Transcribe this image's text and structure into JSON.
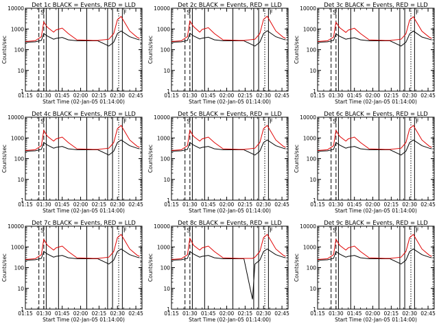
{
  "chart_data": [
    {
      "type": "line",
      "title": "Det 1c BLACK = Events, RED = LLD",
      "xlabel": "Start Time (02-Jan-05 01:14:00)",
      "ylabel": "Counts/sec",
      "yscale": "log",
      "ylim": [
        1,
        10000
      ],
      "xlim": [
        "01:15",
        "02:50"
      ],
      "x_ticks": [
        "01:15",
        "01:30",
        "01:45",
        "02:00",
        "02:15",
        "02:30",
        "02:45"
      ],
      "y_ticks": [
        "1",
        "10",
        "100",
        "1000",
        "10000"
      ],
      "x": [
        "01:15",
        "01:23",
        "01:28",
        "01:30",
        "01:33",
        "01:38",
        "01:40",
        "01:45",
        "01:50",
        "01:57",
        "02:10",
        "02:14",
        "02:23",
        "02:27",
        "02:30",
        "02:33",
        "02:40",
        "02:46",
        "02:48"
      ],
      "series": [
        {
          "name": "BLACK = Events",
          "color": "#000000",
          "values": [
            230,
            240,
            280,
            600,
            450,
            320,
            350,
            390,
            300,
            270,
            270,
            270,
            150,
            230,
            600,
            800,
            420,
            320,
            300
          ]
        },
        {
          "name": "RED = LLD",
          "color": "#e00000",
          "values": [
            250,
            270,
            420,
            2200,
            1200,
            700,
            900,
            1100,
            600,
            300,
            280,
            280,
            320,
            600,
            2800,
            4000,
            800,
            400,
            350
          ]
        }
      ],
      "markers": {
        "solid": [
          "01:32",
          "01:42",
          "02:05",
          "02:22",
          "02:26",
          "02:34"
        ],
        "dashed": [
          "01:26",
          "01:30"
        ],
        "dotted": [
          "02:31",
          "02:49"
        ]
      },
      "annotations": [
        "S",
        "F"
      ]
    },
    {
      "type": "line",
      "title": "Det 2c BLACK = Events, RED = LLD",
      "xlabel": "Start Time (02-Jan-05 01:14:00)",
      "ylabel": "Counts/sec",
      "yscale": "log",
      "ylim": [
        1,
        10000
      ],
      "xlim": [
        "01:15",
        "02:50"
      ],
      "x_ticks": [
        "01:15",
        "01:30",
        "01:45",
        "02:00",
        "02:15",
        "02:30",
        "02:45"
      ],
      "y_ticks": [
        "1",
        "10",
        "100",
        "1000",
        "10000"
      ],
      "x": [
        "01:15",
        "01:23",
        "01:28",
        "01:30",
        "01:33",
        "01:38",
        "01:40",
        "01:45",
        "01:50",
        "01:57",
        "02:10",
        "02:14",
        "02:23",
        "02:27",
        "02:30",
        "02:33",
        "02:40",
        "02:46",
        "02:48"
      ],
      "series": [
        {
          "name": "BLACK = Events",
          "color": "#000000",
          "values": [
            230,
            240,
            280,
            620,
            460,
            330,
            360,
            400,
            300,
            270,
            270,
            270,
            150,
            230,
            600,
            820,
            420,
            320,
            300
          ]
        },
        {
          "name": "RED = LLD",
          "color": "#e00000",
          "values": [
            250,
            270,
            430,
            2400,
            1300,
            700,
            950,
            1150,
            600,
            300,
            280,
            280,
            320,
            600,
            2900,
            4100,
            800,
            400,
            350
          ]
        }
      ],
      "markers": {
        "solid": [
          "01:32",
          "01:42",
          "02:05",
          "02:22",
          "02:26",
          "02:34"
        ],
        "dashed": [
          "01:26",
          "01:30"
        ],
        "dotted": [
          "02:31",
          "02:49"
        ]
      },
      "annotations": [
        "S",
        "F"
      ]
    },
    {
      "type": "line",
      "title": "Det 3c BLACK = Events, RED = LLD",
      "xlabel": "Start Time (02-Jan-05 01:14:00)",
      "ylabel": "Counts/sec",
      "yscale": "log",
      "ylim": [
        1,
        10000
      ],
      "xlim": [
        "01:15",
        "02:50"
      ],
      "x_ticks": [
        "01:15",
        "01:30",
        "01:45",
        "02:00",
        "02:15",
        "02:30",
        "02:45"
      ],
      "y_ticks": [
        "1",
        "10",
        "100",
        "1000",
        "10000"
      ],
      "x": [
        "01:15",
        "01:23",
        "01:28",
        "01:30",
        "01:33",
        "01:38",
        "01:40",
        "01:45",
        "01:50",
        "01:57",
        "02:10",
        "02:14",
        "02:23",
        "02:27",
        "02:30",
        "02:33",
        "02:40",
        "02:46",
        "02:48"
      ],
      "series": [
        {
          "name": "BLACK = Events",
          "color": "#000000",
          "values": [
            230,
            240,
            280,
            580,
            440,
            320,
            340,
            380,
            300,
            270,
            270,
            270,
            150,
            230,
            580,
            790,
            410,
            320,
            300
          ]
        },
        {
          "name": "RED = LLD",
          "color": "#e00000",
          "values": [
            250,
            270,
            410,
            2100,
            1150,
            680,
            880,
            1080,
            600,
            300,
            280,
            280,
            320,
            580,
            2700,
            3900,
            780,
            400,
            350
          ]
        }
      ],
      "markers": {
        "solid": [
          "01:32",
          "01:42",
          "02:05",
          "02:22",
          "02:26",
          "02:34"
        ],
        "dashed": [
          "01:26",
          "01:30"
        ],
        "dotted": [
          "02:31",
          "02:49"
        ]
      },
      "annotations": [
        "S",
        "F"
      ]
    },
    {
      "type": "line",
      "title": "Det 4c BLACK = Events, RED = LLD",
      "xlabel": "Start Time (02-Jan-05 01:14:00)",
      "ylabel": "Counts/sec",
      "yscale": "log",
      "ylim": [
        1,
        10000
      ],
      "xlim": [
        "01:15",
        "02:50"
      ],
      "x_ticks": [
        "01:15",
        "01:30",
        "01:45",
        "02:00",
        "02:15",
        "02:30",
        "02:45"
      ],
      "y_ticks": [
        "1",
        "10",
        "100",
        "1000",
        "10000"
      ],
      "x": [
        "01:15",
        "01:23",
        "01:28",
        "01:30",
        "01:33",
        "01:38",
        "01:40",
        "01:45",
        "01:50",
        "01:57",
        "02:10",
        "02:14",
        "02:23",
        "02:27",
        "02:30",
        "02:33",
        "02:40",
        "02:46",
        "02:48"
      ],
      "series": [
        {
          "name": "BLACK = Events",
          "color": "#000000",
          "values": [
            230,
            240,
            280,
            600,
            450,
            320,
            350,
            390,
            300,
            270,
            270,
            270,
            150,
            230,
            600,
            800,
            420,
            320,
            300
          ]
        },
        {
          "name": "RED = LLD",
          "color": "#e00000",
          "values": [
            250,
            270,
            420,
            2300,
            1200,
            700,
            900,
            1100,
            600,
            300,
            280,
            280,
            320,
            600,
            2800,
            4000,
            800,
            400,
            350
          ]
        }
      ],
      "markers": {
        "solid": [
          "01:32",
          "01:42",
          "02:05",
          "02:22",
          "02:26",
          "02:34"
        ],
        "dashed": [
          "01:26",
          "01:30"
        ],
        "dotted": [
          "02:31",
          "02:49"
        ]
      },
      "annotations": [
        "S",
        "F"
      ]
    },
    {
      "type": "line",
      "title": "Det 5c BLACK = Events, RED = LLD",
      "xlabel": "Start Time (02-Jan-05 01:14:00)",
      "ylabel": "Counts/sec",
      "yscale": "log",
      "ylim": [
        1,
        10000
      ],
      "xlim": [
        "01:15",
        "02:50"
      ],
      "x_ticks": [
        "01:15",
        "01:30",
        "01:45",
        "02:00",
        "02:15",
        "02:30",
        "02:45"
      ],
      "y_ticks": [
        "1",
        "10",
        "100",
        "1000",
        "10000"
      ],
      "x": [
        "01:15",
        "01:23",
        "01:28",
        "01:30",
        "01:33",
        "01:38",
        "01:40",
        "01:45",
        "01:50",
        "01:57",
        "02:10",
        "02:14",
        "02:23",
        "02:27",
        "02:30",
        "02:33",
        "02:40",
        "02:46",
        "02:48"
      ],
      "series": [
        {
          "name": "BLACK = Events",
          "color": "#000000",
          "values": [
            230,
            240,
            280,
            600,
            450,
            320,
            350,
            390,
            300,
            270,
            270,
            270,
            150,
            230,
            600,
            800,
            420,
            320,
            300
          ]
        },
        {
          "name": "RED = LLD",
          "color": "#e00000",
          "values": [
            250,
            270,
            420,
            2300,
            1200,
            700,
            900,
            1100,
            600,
            300,
            280,
            280,
            320,
            600,
            2800,
            4000,
            800,
            400,
            350
          ]
        }
      ],
      "markers": {
        "solid": [
          "01:32",
          "01:42",
          "02:05",
          "02:22",
          "02:26",
          "02:34"
        ],
        "dashed": [
          "01:26",
          "01:30"
        ],
        "dotted": [
          "02:31",
          "02:49"
        ]
      },
      "annotations": [
        "S",
        "F"
      ]
    },
    {
      "type": "line",
      "title": "Det 6c BLACK = Events, RED = LLD",
      "xlabel": "Start Time (02-Jan-05 01:14:00)",
      "ylabel": "Counts/sec",
      "yscale": "log",
      "ylim": [
        1,
        10000
      ],
      "xlim": [
        "01:15",
        "02:50"
      ],
      "x_ticks": [
        "01:15",
        "01:30",
        "01:45",
        "02:00",
        "02:15",
        "02:30",
        "02:45"
      ],
      "y_ticks": [
        "1",
        "10",
        "100",
        "1000",
        "10000"
      ],
      "x": [
        "01:15",
        "01:23",
        "01:28",
        "01:30",
        "01:33",
        "01:38",
        "01:40",
        "01:45",
        "01:50",
        "01:57",
        "02:10",
        "02:14",
        "02:23",
        "02:27",
        "02:30",
        "02:33",
        "02:40",
        "02:46",
        "02:48"
      ],
      "series": [
        {
          "name": "BLACK = Events",
          "color": "#000000",
          "values": [
            230,
            240,
            280,
            600,
            450,
            320,
            350,
            390,
            300,
            270,
            270,
            270,
            150,
            230,
            600,
            800,
            420,
            320,
            300
          ]
        },
        {
          "name": "RED = LLD",
          "color": "#e00000",
          "values": [
            250,
            270,
            420,
            2300,
            1200,
            700,
            900,
            1100,
            600,
            300,
            280,
            280,
            320,
            600,
            2800,
            4000,
            800,
            400,
            350
          ]
        }
      ],
      "markers": {
        "solid": [
          "01:32",
          "01:42",
          "02:05",
          "02:22",
          "02:26",
          "02:34"
        ],
        "dashed": [
          "01:26",
          "01:30"
        ],
        "dotted": [
          "02:31",
          "02:49"
        ]
      },
      "annotations": [
        "S",
        "F"
      ]
    },
    {
      "type": "line",
      "title": "Det 7c BLACK = Events, RED = LLD",
      "xlabel": "Start Time (02-Jan-05 01:14:00)",
      "ylabel": "Counts/sec",
      "yscale": "log",
      "ylim": [
        1,
        10000
      ],
      "xlim": [
        "01:15",
        "02:50"
      ],
      "x_ticks": [
        "01:15",
        "01:30",
        "01:45",
        "02:00",
        "02:15",
        "02:30",
        "02:45"
      ],
      "y_ticks": [
        "1",
        "10",
        "100",
        "1000",
        "10000"
      ],
      "x": [
        "01:15",
        "01:23",
        "01:28",
        "01:30",
        "01:33",
        "01:38",
        "01:40",
        "01:45",
        "01:50",
        "01:57",
        "02:10",
        "02:14",
        "02:23",
        "02:27",
        "02:30",
        "02:33",
        "02:40",
        "02:46",
        "02:48"
      ],
      "series": [
        {
          "name": "BLACK = Events",
          "color": "#000000",
          "values": [
            230,
            240,
            280,
            600,
            450,
            320,
            350,
            390,
            300,
            270,
            270,
            270,
            150,
            230,
            600,
            800,
            420,
            320,
            300
          ]
        },
        {
          "name": "RED = LLD",
          "color": "#e00000",
          "values": [
            250,
            270,
            420,
            2300,
            1200,
            700,
            900,
            1100,
            600,
            300,
            280,
            280,
            320,
            600,
            2800,
            4000,
            800,
            400,
            350
          ]
        }
      ],
      "markers": {
        "solid": [
          "01:32",
          "01:42",
          "02:05",
          "02:22",
          "02:26",
          "02:34"
        ],
        "dashed": [
          "01:26",
          "01:30"
        ],
        "dotted": [
          "02:31",
          "02:49"
        ]
      },
      "annotations": [
        "S",
        "F"
      ]
    },
    {
      "type": "line",
      "title": "Det 8c BLACK = Events, RED = LLD",
      "xlabel": "Start Time (02-Jan-05 01:14:00)",
      "ylabel": "Counts/sec",
      "yscale": "log",
      "ylim": [
        1,
        10000
      ],
      "xlim": [
        "01:15",
        "02:50"
      ],
      "x_ticks": [
        "01:15",
        "01:30",
        "01:45",
        "02:00",
        "02:15",
        "02:30",
        "02:45"
      ],
      "y_ticks": [
        "1",
        "10",
        "100",
        "1000",
        "10000"
      ],
      "x": [
        "01:15",
        "01:23",
        "01:28",
        "01:30",
        "01:33",
        "01:38",
        "01:40",
        "01:45",
        "01:50",
        "01:57",
        "02:10",
        "02:14",
        "02:21",
        "02:23",
        "02:27",
        "02:30",
        "02:33",
        "02:40",
        "02:46",
        "02:48"
      ],
      "series": [
        {
          "name": "BLACK = Events",
          "color": "#000000",
          "values": [
            230,
            240,
            280,
            600,
            450,
            320,
            350,
            390,
            300,
            270,
            270,
            270,
            3,
            150,
            230,
            600,
            800,
            420,
            320,
            300
          ]
        },
        {
          "name": "RED = LLD",
          "color": "#e00000",
          "values": [
            250,
            270,
            420,
            2600,
            1200,
            700,
            900,
            1100,
            600,
            300,
            280,
            280,
            280,
            320,
            600,
            2800,
            4000,
            800,
            400,
            350
          ]
        }
      ],
      "markers": {
        "solid": [
          "01:32",
          "01:42",
          "02:05",
          "02:22",
          "02:26",
          "02:34"
        ],
        "dashed": [
          "01:26",
          "01:30"
        ],
        "dotted": [
          "02:31",
          "02:49"
        ]
      },
      "annotations": [
        "S",
        "F"
      ]
    },
    {
      "type": "line",
      "title": "Det 9c BLACK = Events, RED = LLD",
      "xlabel": "Start Time (02-Jan-05 01:14:00)",
      "ylabel": "Counts/sec",
      "yscale": "log",
      "ylim": [
        1,
        10000
      ],
      "xlim": [
        "01:15",
        "02:50"
      ],
      "x_ticks": [
        "01:15",
        "01:30",
        "01:45",
        "02:00",
        "02:15",
        "02:30",
        "02:45"
      ],
      "y_ticks": [
        "1",
        "10",
        "100",
        "1000",
        "10000"
      ],
      "x": [
        "01:15",
        "01:23",
        "01:28",
        "01:30",
        "01:33",
        "01:38",
        "01:40",
        "01:45",
        "01:50",
        "01:57",
        "02:10",
        "02:14",
        "02:23",
        "02:27",
        "02:30",
        "02:33",
        "02:40",
        "02:46",
        "02:48"
      ],
      "series": [
        {
          "name": "BLACK = Events",
          "color": "#000000",
          "values": [
            230,
            240,
            280,
            600,
            450,
            320,
            350,
            390,
            300,
            270,
            270,
            270,
            150,
            230,
            600,
            800,
            420,
            320,
            300
          ]
        },
        {
          "name": "RED = LLD",
          "color": "#e00000",
          "values": [
            250,
            270,
            420,
            2300,
            1200,
            700,
            900,
            1100,
            600,
            300,
            280,
            280,
            320,
            600,
            2800,
            4000,
            800,
            400,
            350
          ]
        }
      ],
      "markers": {
        "solid": [
          "01:32",
          "01:42",
          "02:05",
          "02:22",
          "02:26",
          "02:34"
        ],
        "dashed": [
          "01:26",
          "01:30"
        ],
        "dotted": [
          "02:31",
          "02:49"
        ]
      },
      "annotations": [
        "S",
        "F"
      ]
    }
  ]
}
